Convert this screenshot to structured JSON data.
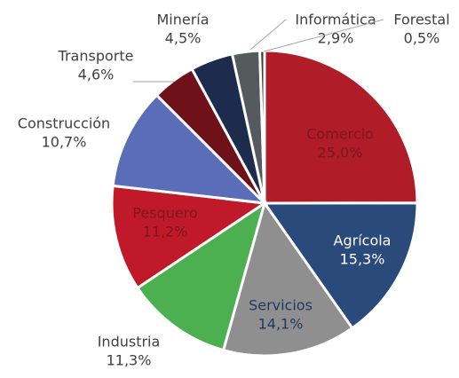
{
  "chart_data": {
    "type": "pie",
    "categories": [
      "Comercio",
      "Agrícola",
      "Servicios",
      "Industria",
      "Pesquero",
      "Construcción",
      "Transporte",
      "Minería",
      "Informática",
      "Forestal"
    ],
    "values": [
      25.0,
      15.3,
      14.1,
      11.3,
      11.2,
      10.7,
      4.6,
      4.5,
      2.9,
      0.5
    ],
    "value_labels": [
      "25,0%",
      "15,3%",
      "14,1%",
      "11,3%",
      "11,2%",
      "10,7%",
      "4,6%",
      "4,5%",
      "2,9%",
      "0,5%"
    ],
    "colors": [
      "#b01c27",
      "#2b4a7c",
      "#8f8f8f",
      "#4caf50",
      "#c01a2a",
      "#5b6db6",
      "#6e1119",
      "#1d2b4c",
      "#555a5c",
      "#3c3c3c"
    ]
  }
}
